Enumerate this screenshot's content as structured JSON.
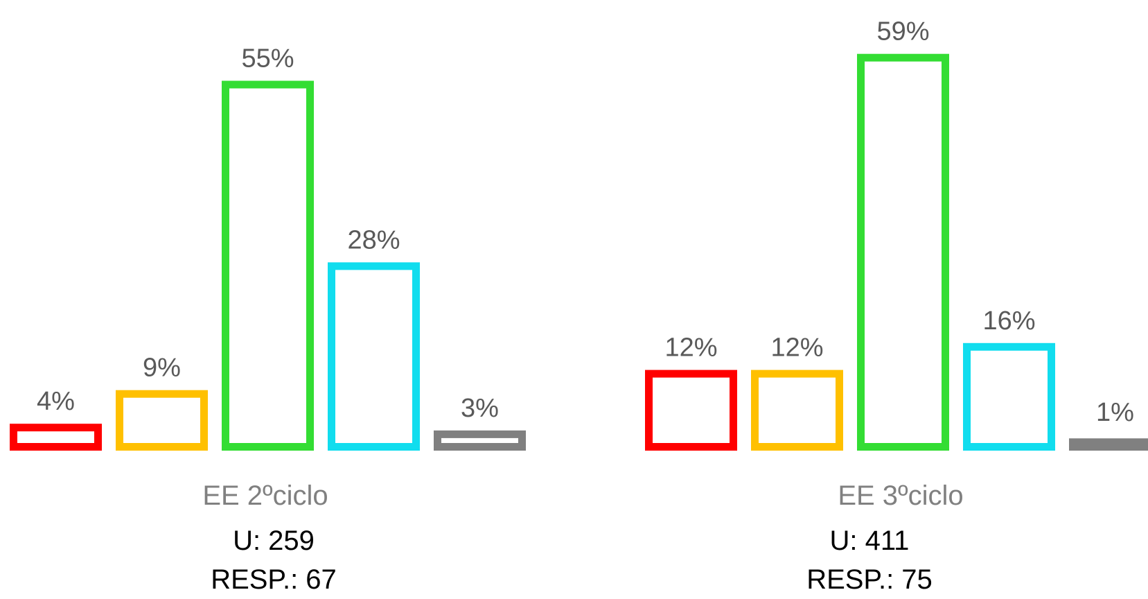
{
  "chart_data": [
    {
      "type": "bar",
      "categories": [
        "",
        "",
        "",
        "",
        ""
      ],
      "values": [
        4,
        9,
        55,
        28,
        3
      ],
      "value_labels": [
        "4%",
        "9%",
        "55%",
        "28%",
        "3%"
      ],
      "colors": [
        "#FF0000",
        "#FFC000",
        "#33DD33",
        "#11DDEE",
        "#808080"
      ],
      "title": "",
      "xlabel": "EE 2ºciclo",
      "ylabel": "",
      "ylim": [
        0,
        60
      ],
      "grid": false,
      "legend": "none",
      "unit": "%"
    },
    {
      "type": "bar",
      "categories": [
        "",
        "",
        "",
        "",
        ""
      ],
      "values": [
        12,
        12,
        59,
        16,
        1
      ],
      "value_labels": [
        "12%",
        "12%",
        "59%",
        "16%",
        "1%"
      ],
      "colors": [
        "#FF0000",
        "#FFC000",
        "#33DD33",
        "#11DDEE",
        "#808080"
      ],
      "title": "",
      "xlabel": "EE 3ºciclo",
      "ylabel": "",
      "ylim": [
        0,
        60
      ],
      "grid": false,
      "legend": "none",
      "unit": "%"
    }
  ],
  "footer": [
    {
      "u": "U: 259",
      "resp": "RESP.: 67"
    },
    {
      "u": "U: 411",
      "resp": "RESP.: 75"
    }
  ],
  "colors": {
    "label_text": "#595959",
    "axis_label_text": "#808080",
    "footer_text": "#000000"
  }
}
